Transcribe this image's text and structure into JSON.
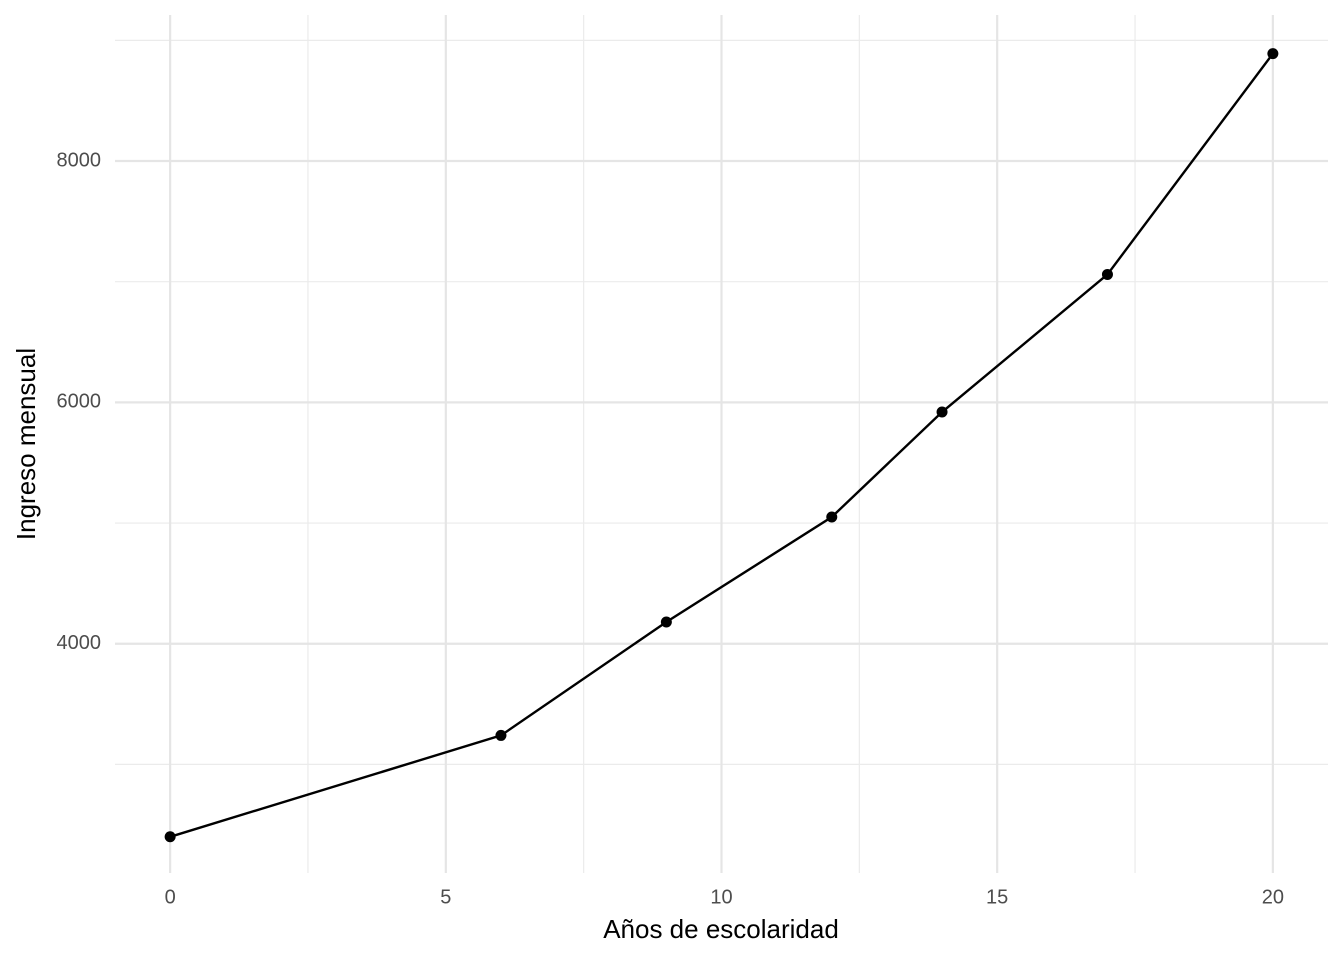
{
  "chart_data": {
    "type": "line",
    "x_label": "Años de escolaridad",
    "y_label": "Ingreso mensual",
    "x": [
      0,
      6,
      9,
      12,
      14,
      17,
      20
    ],
    "values": [
      2400,
      3240,
      4180,
      5050,
      5920,
      7060,
      8890
    ],
    "color": "#000000",
    "xlim": [
      -1,
      21
    ],
    "xticks": [
      0,
      5,
      10,
      15,
      20
    ],
    "minor_xticks": [
      2.5,
      7.5,
      12.5,
      17.5
    ],
    "ylim": [
      2100,
      9210
    ],
    "yticks": [
      4000,
      6000,
      8000
    ],
    "minor_yticks": [
      3000,
      5000,
      7000,
      9000
    ],
    "grid": true
  }
}
